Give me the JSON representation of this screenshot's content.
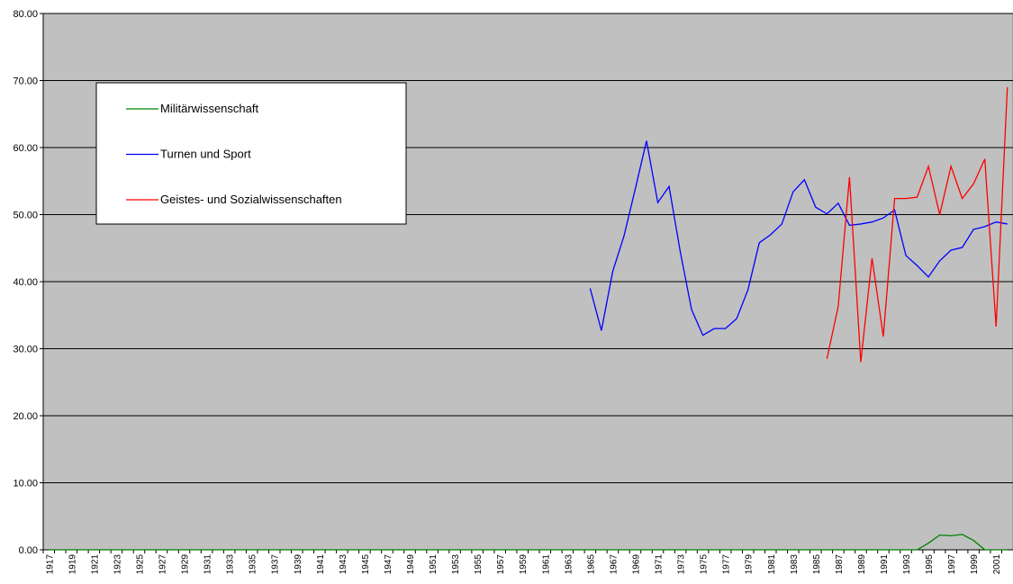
{
  "chart_data": {
    "type": "line",
    "categories": [
      "1917",
      null,
      "1919",
      null,
      "1921",
      null,
      "1923",
      null,
      "1925",
      null,
      "1927",
      null,
      "1929",
      null,
      "1931",
      null,
      "1933",
      null,
      "1935",
      null,
      "1937",
      null,
      "1939",
      null,
      "1941",
      null,
      "1943",
      null,
      "1945",
      null,
      "1947",
      null,
      "1949",
      null,
      "1951",
      null,
      "1953",
      null,
      "1955",
      null,
      "1957",
      null,
      "1959",
      null,
      "1961",
      null,
      "1963",
      null,
      "1965",
      null,
      "1967",
      null,
      "1969",
      null,
      "1971",
      null,
      "1973",
      null,
      "1975",
      null,
      "1977",
      null,
      "1979",
      null,
      "1981",
      null,
      "1983",
      null,
      "1985",
      null,
      "1987",
      null,
      "1989",
      null,
      "1991",
      null,
      "1993",
      null,
      "1995",
      null,
      "1997",
      null,
      "1999",
      null,
      "2001",
      null
    ],
    "series": [
      {
        "name": "Militärwissenschaft",
        "color": "#008000",
        "values": [
          0,
          0,
          0,
          0,
          0,
          0,
          0,
          0,
          0,
          0,
          0,
          0,
          0,
          0,
          0,
          0,
          0,
          0,
          0,
          0,
          0,
          0,
          0,
          0,
          0,
          0,
          0,
          0,
          0,
          0,
          0,
          0,
          0,
          0,
          0,
          0,
          0,
          0,
          0,
          0,
          0,
          0,
          0,
          0,
          0,
          0,
          0,
          0,
          0,
          0,
          0,
          0,
          0,
          0,
          0,
          0,
          0,
          0,
          0,
          0,
          0,
          0,
          0,
          0,
          0,
          0,
          0,
          0,
          0,
          0,
          0,
          0,
          0,
          0,
          0,
          0,
          0,
          0,
          1.0,
          2.2,
          2.1,
          2.3,
          1.4,
          0,
          0,
          0
        ]
      },
      {
        "name": "Turnen und Sport",
        "color": "#0000ff",
        "values": [
          null,
          null,
          null,
          null,
          null,
          null,
          null,
          null,
          null,
          null,
          null,
          null,
          null,
          null,
          null,
          null,
          null,
          null,
          null,
          null,
          null,
          null,
          null,
          null,
          null,
          null,
          null,
          null,
          null,
          null,
          null,
          null,
          null,
          null,
          null,
          null,
          null,
          null,
          null,
          null,
          null,
          null,
          null,
          null,
          null,
          null,
          null,
          null,
          39.0,
          32.7,
          41.5,
          46.8,
          53.8,
          61.0,
          51.8,
          54.2,
          44.4,
          35.8,
          32.0,
          33.0,
          33.0,
          34.5,
          38.8,
          45.8,
          47.0,
          48.6,
          53.4,
          55.2,
          51.1,
          50.1,
          51.7,
          48.4,
          48.6,
          48.9,
          49.5,
          50.7,
          43.9,
          42.4,
          40.7,
          43.1,
          44.7,
          45.1,
          47.8,
          48.2,
          48.9,
          48.6
        ]
      },
      {
        "name": "Geistes- und Sozialwissenschaften",
        "color": "#ff0000",
        "values": [
          null,
          null,
          null,
          null,
          null,
          null,
          null,
          null,
          null,
          null,
          null,
          null,
          null,
          null,
          null,
          null,
          null,
          null,
          null,
          null,
          null,
          null,
          null,
          null,
          null,
          null,
          null,
          null,
          null,
          null,
          null,
          null,
          null,
          null,
          null,
          null,
          null,
          null,
          null,
          null,
          null,
          null,
          null,
          null,
          null,
          null,
          null,
          null,
          null,
          null,
          null,
          null,
          null,
          null,
          null,
          null,
          null,
          null,
          null,
          null,
          null,
          null,
          null,
          null,
          null,
          null,
          null,
          null,
          null,
          28.5,
          36.3,
          55.6,
          28.0,
          43.5,
          31.8,
          52.4,
          52.4,
          52.6,
          57.2,
          50.0,
          57.2,
          52.4,
          54.6,
          58.3,
          33.3,
          69.0
        ]
      }
    ],
    "ylim": [
      0,
      80
    ],
    "yticks": [
      {
        "value": 0,
        "label": "0.00"
      },
      {
        "value": 10,
        "label": "10.00"
      },
      {
        "value": 20,
        "label": "20.00"
      },
      {
        "value": 30,
        "label": "30.00"
      },
      {
        "value": 40,
        "label": "40.00"
      },
      {
        "value": 50,
        "label": "50.00"
      },
      {
        "value": 60,
        "label": "60.00"
      },
      {
        "value": 70,
        "label": "70.00"
      },
      {
        "value": 80,
        "label": "80.00"
      }
    ],
    "grid": true,
    "background": "#c0c0c0"
  }
}
